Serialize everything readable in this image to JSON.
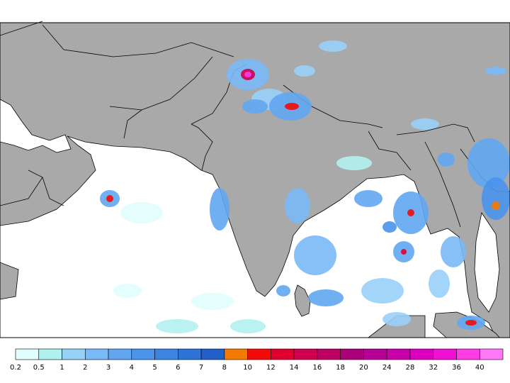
{
  "legend": {
    "levels": [
      0.2,
      0.5,
      1,
      2,
      3,
      4,
      5,
      6,
      7,
      8,
      10,
      12,
      14,
      16,
      18,
      20,
      24,
      28,
      32,
      36,
      40
    ],
    "colors": [
      "#e1fdfd",
      "#b2f0f0",
      "#98d0f8",
      "#7ab8f6",
      "#62a6f2",
      "#4a94ec",
      "#3c84e2",
      "#2e74d8",
      "#2060c8",
      "#f57a00",
      "#f50a0a",
      "#e00030",
      "#d00050",
      "#be0064",
      "#aa0078",
      "#b40096",
      "#c800aa",
      "#dc00be",
      "#ee10d4",
      "#ff3ce6",
      "#ff78f8"
    ]
  }
}
